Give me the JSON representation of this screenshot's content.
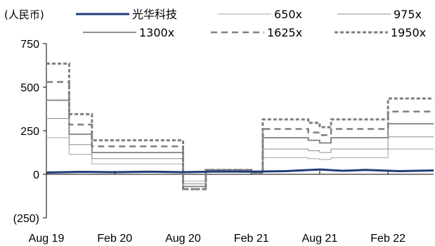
{
  "chart_data": {
    "type": "line",
    "unit_label": "(人民币)",
    "x_start": "2019-08",
    "x_end": "2022-06",
    "x_ticks": [
      "Aug 19",
      "Feb 20",
      "Aug 20",
      "Feb 21",
      "Aug 21",
      "Feb 22"
    ],
    "y_ticks": [
      "750",
      "500",
      "250",
      "0",
      "(250)"
    ],
    "ylim": [
      -250,
      750
    ],
    "series": [
      {
        "name": "光华科技",
        "color": "#1f3d7a",
        "style": "solid-thick",
        "points": [
          [
            "2019-08",
            10
          ],
          [
            "2019-11",
            14
          ],
          [
            "2020-02",
            12
          ],
          [
            "2020-05",
            15
          ],
          [
            "2020-08",
            12
          ],
          [
            "2020-11",
            16
          ],
          [
            "2021-02",
            15
          ],
          [
            "2021-05",
            18
          ],
          [
            "2021-08",
            28
          ],
          [
            "2021-10",
            20
          ],
          [
            "2021-12",
            25
          ],
          [
            "2022-03",
            18
          ],
          [
            "2022-06",
            22
          ]
        ]
      },
      {
        "name": "650x",
        "color": "#a6a6a6",
        "style": "thin",
        "steps": [
          [
            "2019-08",
            210
          ],
          [
            "2019-10",
            115
          ],
          [
            "2019-12",
            60
          ],
          [
            "2020-08",
            -40
          ],
          [
            "2020-10",
            15
          ],
          [
            "2021-02",
            10
          ],
          [
            "2021-03",
            95
          ],
          [
            "2021-07",
            90
          ],
          [
            "2021-08",
            85
          ],
          [
            "2021-09",
            95
          ],
          [
            "2022-02",
            145
          ]
        ],
        "end": "2022-06"
      },
      {
        "name": "975x",
        "color": "#8c8c8c",
        "style": "thin",
        "steps": [
          [
            "2019-08",
            320
          ],
          [
            "2019-10",
            170
          ],
          [
            "2019-12",
            90
          ],
          [
            "2020-08",
            -55
          ],
          [
            "2020-10",
            20
          ],
          [
            "2021-02",
            10
          ],
          [
            "2021-03",
            145
          ],
          [
            "2021-07",
            135
          ],
          [
            "2021-08",
            125
          ],
          [
            "2021-09",
            145
          ],
          [
            "2022-02",
            215
          ]
        ],
        "end": "2022-06"
      },
      {
        "name": "1300x",
        "color": "#7f7f7f",
        "style": "medium",
        "steps": [
          [
            "2019-08",
            425
          ],
          [
            "2019-10",
            230
          ],
          [
            "2019-12",
            125
          ],
          [
            "2020-08",
            -70
          ],
          [
            "2020-10",
            25
          ],
          [
            "2021-02",
            10
          ],
          [
            "2021-03",
            210
          ],
          [
            "2021-07",
            195
          ],
          [
            "2021-08",
            180
          ],
          [
            "2021-09",
            210
          ],
          [
            "2022-02",
            290
          ]
        ],
        "end": "2022-06"
      },
      {
        "name": "1625x",
        "color": "#7f7f7f",
        "style": "dashed",
        "steps": [
          [
            "2019-08",
            530
          ],
          [
            "2019-10",
            285
          ],
          [
            "2019-12",
            160
          ],
          [
            "2020-08",
            -85
          ],
          [
            "2020-10",
            25
          ],
          [
            "2021-02",
            10
          ],
          [
            "2021-03",
            260
          ],
          [
            "2021-07",
            240
          ],
          [
            "2021-08",
            225
          ],
          [
            "2021-09",
            260
          ],
          [
            "2022-02",
            360
          ]
        ],
        "end": "2022-06"
      },
      {
        "name": "1950x",
        "color": "#7f7f7f",
        "style": "short-dashed",
        "steps": [
          [
            "2019-08",
            635
          ],
          [
            "2019-10",
            345
          ],
          [
            "2019-12",
            195
          ],
          [
            "2020-08",
            -85
          ],
          [
            "2020-10",
            25
          ],
          [
            "2021-02",
            10
          ],
          [
            "2021-03",
            315
          ],
          [
            "2021-07",
            295
          ],
          [
            "2021-08",
            270
          ],
          [
            "2021-09",
            315
          ],
          [
            "2022-02",
            435
          ]
        ],
        "end": "2022-06"
      }
    ]
  }
}
